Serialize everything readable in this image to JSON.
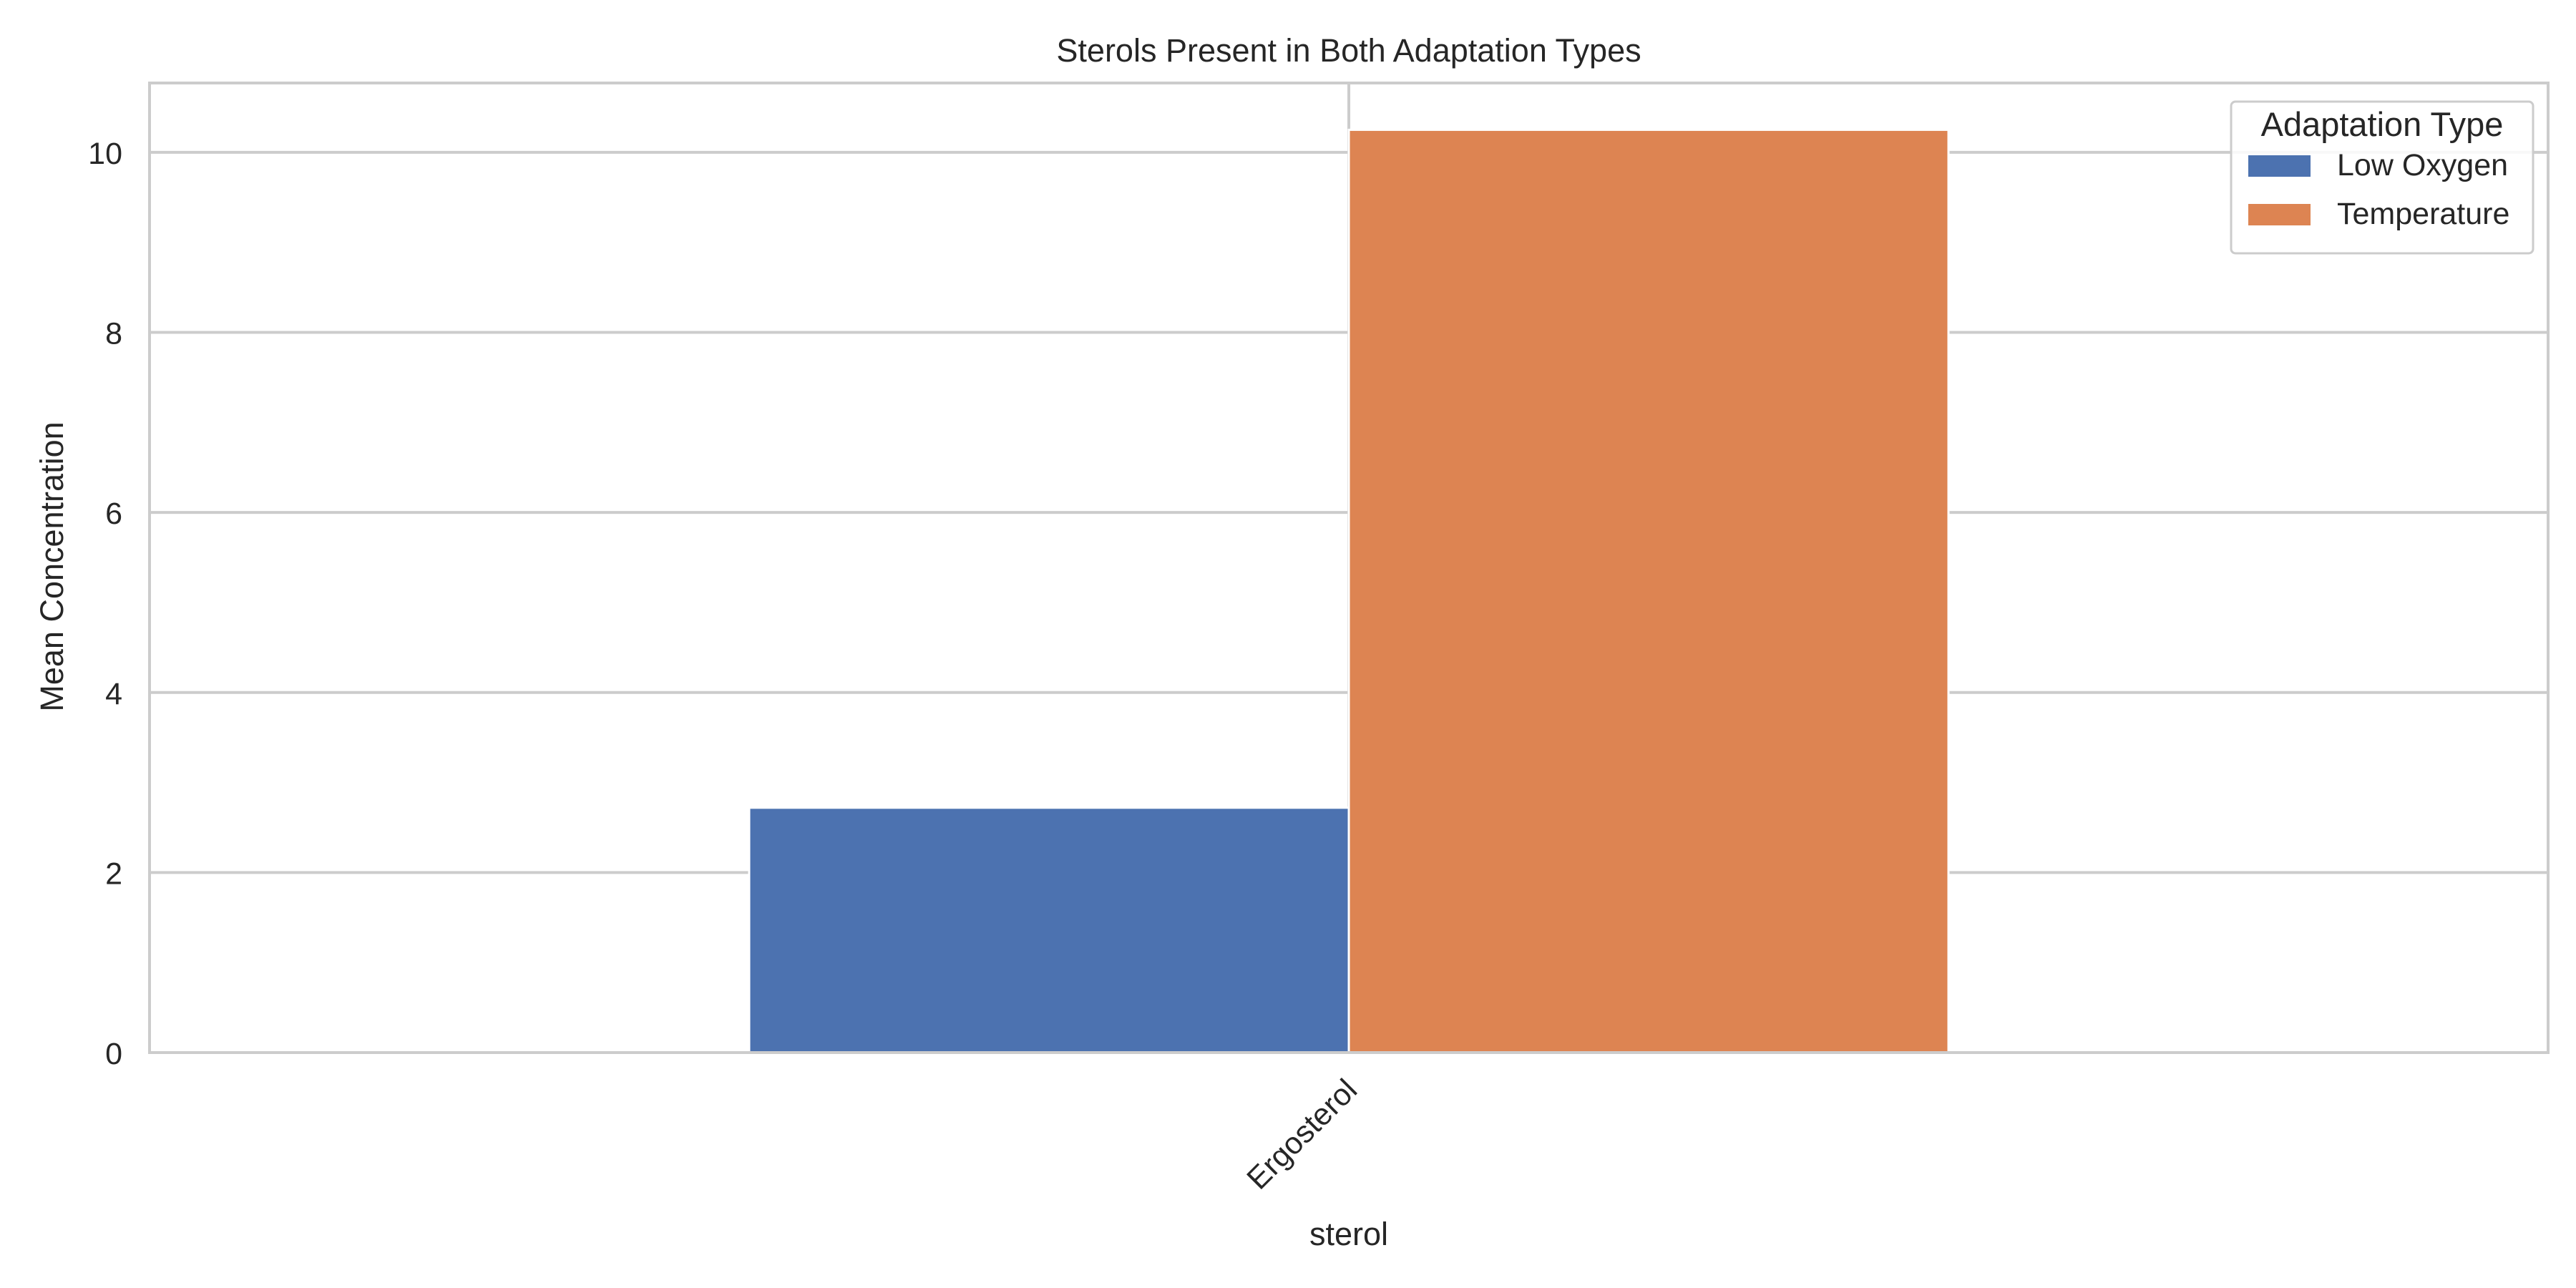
{
  "chart_data": {
    "type": "bar",
    "title": "Sterols Present in Both Adaptation Types",
    "xlabel": "sterol",
    "ylabel": "Mean Concentration",
    "categories": [
      "Ergosterol"
    ],
    "series": [
      {
        "name": "Low Oxygen",
        "values": [
          2.72
        ],
        "color": "#4c72b0"
      },
      {
        "name": "Temperature",
        "values": [
          10.25
        ],
        "color": "#dd8452"
      }
    ],
    "ylim": [
      0,
      10.77
    ],
    "yticks": [
      0,
      2,
      4,
      6,
      8,
      10
    ],
    "grid": true,
    "legend": {
      "title": "Adaptation Type",
      "placement": "top-right"
    }
  }
}
